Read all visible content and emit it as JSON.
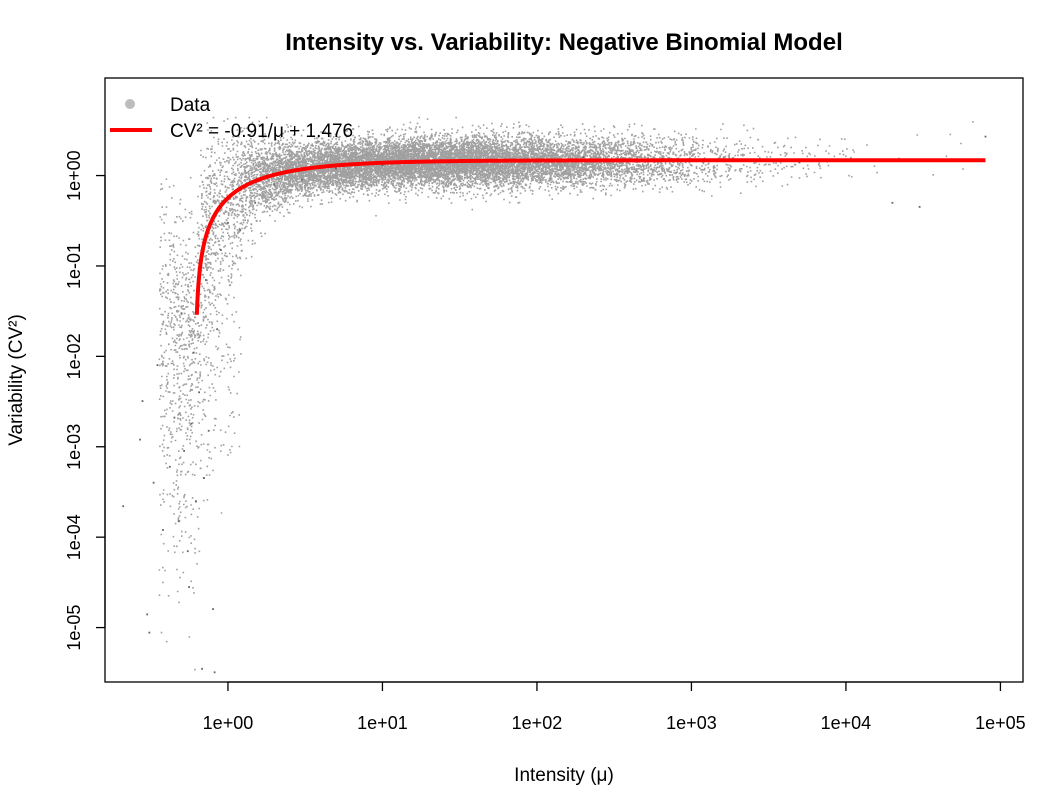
{
  "chart_data": {
    "type": "scatter",
    "title": "Intensity vs. Variability: Negative Binomial Model",
    "xlabel": "Intensity (μ)",
    "ylabel": "Variability (CV²)",
    "x_scale": "log",
    "y_scale": "log",
    "xlim": [
      0.16,
      140000
    ],
    "ylim": [
      2.5e-06,
      12
    ],
    "x_ticks": [
      {
        "value": 1,
        "label": "1e+00"
      },
      {
        "value": 10,
        "label": "1e+01"
      },
      {
        "value": 100,
        "label": "1e+02"
      },
      {
        "value": 1000,
        "label": "1e+03"
      },
      {
        "value": 10000,
        "label": "1e+04"
      },
      {
        "value": 100000,
        "label": "1e+05"
      }
    ],
    "y_ticks": [
      {
        "value": 1e-05,
        "label": "1e-05"
      },
      {
        "value": 0.0001,
        "label": "1e-04"
      },
      {
        "value": 0.001,
        "label": "1e-03"
      },
      {
        "value": 0.01,
        "label": "1e-02"
      },
      {
        "value": 0.1,
        "label": "1e-01"
      },
      {
        "value": 1,
        "label": "1e+00"
      }
    ],
    "grid": false,
    "legend_position": "top-left",
    "series": [
      {
        "name": "Data",
        "kind": "points",
        "color": "#808080",
        "legend_color": "#bdbdbd",
        "description": "approx. 15000 noisy points, log10(mu) from -0.7 to 5; CV2 roughly follows the fitted curve with larger scatter at low intensity",
        "points": [
          [
            0.21,
            0.00022
          ],
          [
            0.27,
            0.0012
          ],
          [
            0.28,
            0.0032
          ],
          [
            0.3,
            1.4e-05
          ],
          [
            0.31,
            8.8e-06
          ],
          [
            0.33,
            0.0004
          ],
          [
            0.35,
            0.008
          ],
          [
            0.38,
            0.00012
          ],
          [
            0.42,
            0.0006
          ],
          [
            0.45,
            0.0021
          ],
          [
            0.48,
            0.00015
          ],
          [
            0.5,
            0.03
          ],
          [
            0.52,
            0.0009
          ],
          [
            0.55,
            7e-05
          ],
          [
            0.56,
            2.8e-05
          ],
          [
            0.58,
            0.0018
          ],
          [
            0.6,
            0.011
          ],
          [
            0.62,
            0.00025
          ],
          [
            0.65,
            0.004
          ],
          [
            0.68,
            3.5e-06
          ],
          [
            0.7,
            0.00045
          ],
          [
            0.72,
            0.07
          ],
          [
            0.75,
            0.0015
          ],
          [
            0.8,
            1.6e-05
          ],
          [
            0.82,
            3.2e-06
          ],
          [
            0.85,
            0.02
          ],
          [
            0.9,
            0.15
          ],
          [
            1.0,
            0.3
          ],
          [
            1.2,
            0.25
          ],
          [
            1.5,
            0.5
          ],
          [
            2.0,
            0.8
          ],
          [
            3.0,
            0.9
          ],
          [
            5.0,
            1.2
          ],
          [
            10,
            1.3
          ],
          [
            50,
            1.5
          ],
          [
            200,
            1.6
          ],
          [
            1000,
            1.5
          ],
          [
            5000,
            1.4
          ],
          [
            20000,
            0.5
          ],
          [
            30000,
            0.45
          ],
          [
            80000,
            2.7
          ]
        ]
      },
      {
        "name": "CV² = -0.91/μ + 1.476",
        "kind": "line",
        "color": "#ff0000",
        "equation": {
          "a": -0.91,
          "b": 1.476
        },
        "x_range": [
          0.6288,
          80000
        ]
      }
    ]
  }
}
